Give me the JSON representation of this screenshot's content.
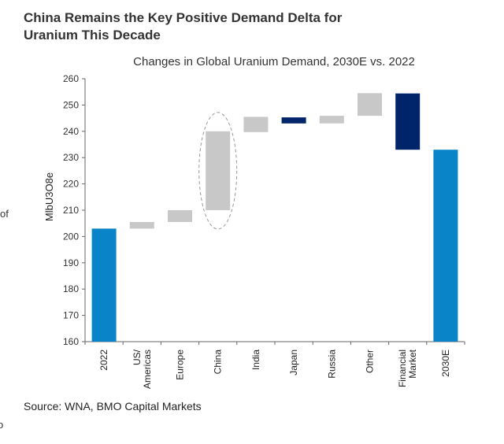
{
  "title_lines": [
    "China Remains the Key Positive Demand Delta for",
    "Uranium This Decade"
  ],
  "source": "Source:  WNA, BMO Capital Markets",
  "edge_fragments": [
    "of",
    "o"
  ],
  "chart_data": {
    "type": "bar",
    "subtype": "waterfall",
    "title": "Changes in Global Uranium Demand, 2030E vs. 2022",
    "xlabel": "",
    "ylabel": "MlbU3O8e",
    "ylim": [
      160,
      260
    ],
    "yticks": [
      160,
      170,
      180,
      190,
      200,
      210,
      220,
      230,
      240,
      250,
      260
    ],
    "grid": false,
    "categories": [
      "2022",
      "US/ Americas",
      "Europe",
      "China",
      "India",
      "Japan",
      "Russia",
      "Other",
      "Financial Market",
      "2030E"
    ],
    "bars": [
      {
        "category": "2022",
        "kind": "total",
        "start": 160,
        "end": 203
      },
      {
        "category": "US/ Americas",
        "kind": "increase",
        "start": 203,
        "end": 205.5
      },
      {
        "category": "Europe",
        "kind": "increase",
        "start": 205.5,
        "end": 210
      },
      {
        "category": "China",
        "kind": "increase",
        "start": 210,
        "end": 240,
        "highlighted": true
      },
      {
        "category": "India",
        "kind": "increase",
        "start": 239.7,
        "end": 245.5
      },
      {
        "category": "Japan",
        "kind": "decrease",
        "start": 245.3,
        "end": 243
      },
      {
        "category": "Russia",
        "kind": "increase",
        "start": 243,
        "end": 245.9
      },
      {
        "category": "Other",
        "kind": "increase",
        "start": 245.9,
        "end": 254.5
      },
      {
        "category": "Financial Market",
        "kind": "decrease",
        "start": 254.4,
        "end": 233
      },
      {
        "category": "2030E",
        "kind": "total",
        "start": 160,
        "end": 233
      }
    ],
    "colors": {
      "total": "#0a84c8",
      "increase": "#c8c8c8",
      "decrease": "#002469"
    }
  }
}
